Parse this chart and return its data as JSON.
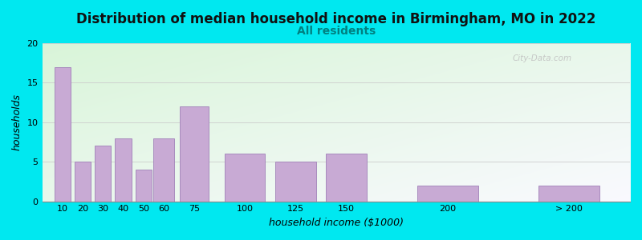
{
  "title": "Distribution of median household income in Birmingham, MO in 2022",
  "subtitle": "All residents",
  "xlabel": "household income ($1000)",
  "ylabel": "households",
  "values": [
    17,
    5,
    7,
    8,
    4,
    8,
    12,
    6,
    5,
    6,
    2,
    2
  ],
  "bar_centers": [
    10,
    20,
    30,
    40,
    50,
    60,
    75,
    100,
    125,
    150,
    200,
    260
  ],
  "bar_widths": [
    8,
    8,
    8,
    8,
    8,
    10,
    14,
    20,
    20,
    20,
    30,
    30
  ],
  "bar_color": "#c8aad4",
  "bar_edge_color": "#a080b8",
  "ylim": [
    0,
    20
  ],
  "xlim": [
    0,
    290
  ],
  "yticks": [
    0,
    5,
    10,
    15,
    20
  ],
  "bg_outer": "#00e8f0",
  "bg_plot_topleft": "#d8f0d8",
  "bg_plot_bottomright": "#f8f8ff",
  "title_fontsize": 12,
  "subtitle_fontsize": 10,
  "subtitle_color": "#008080",
  "axis_label_fontsize": 9,
  "tick_fontsize": 8,
  "title_fontweight": "bold",
  "watermark_text": "City-Data.com",
  "xtick_labels": [
    "10",
    "20",
    "30",
    "40",
    "50",
    "60",
    "75",
    "100",
    "125",
    "150",
    "200",
    "> 200"
  ],
  "xtick_positions": [
    10,
    20,
    30,
    40,
    50,
    60,
    75,
    100,
    125,
    150,
    200,
    260
  ],
  "grid_color": "#cccccc",
  "spine_color": "#888888"
}
